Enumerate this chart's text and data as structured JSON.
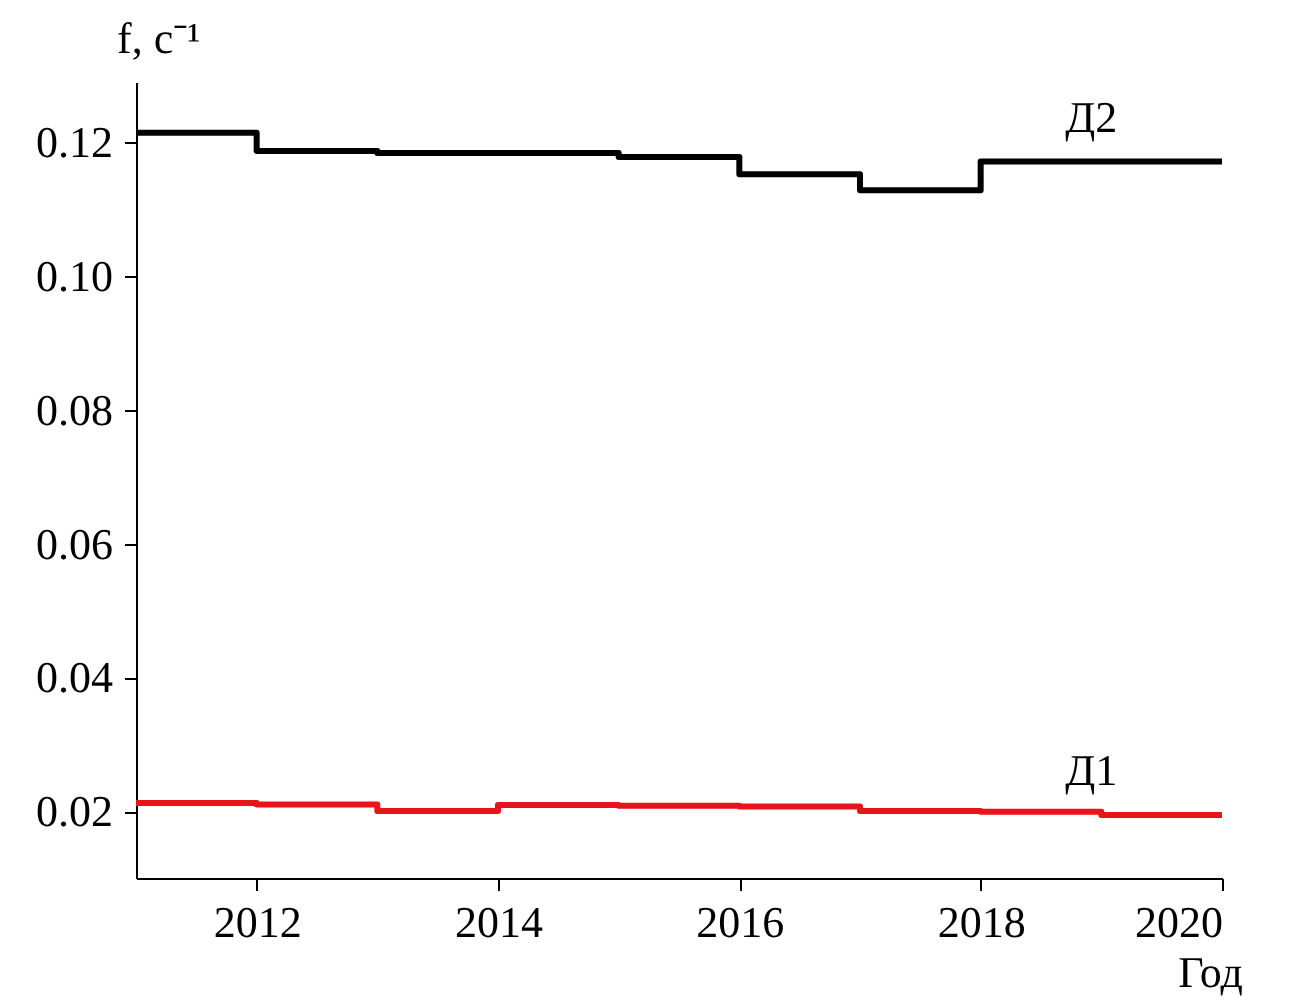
{
  "chart_data": {
    "type": "step",
    "xlabel": "Год",
    "ylabel": "f, с⁻¹",
    "x": [
      2011,
      2012,
      2013,
      2014,
      2015,
      2016,
      2017,
      2018,
      2019,
      2020
    ],
    "series": [
      {
        "name": "Д2",
        "color": "#000000",
        "values": [
          0.1214,
          0.1187,
          0.1184,
          0.1184,
          0.1178,
          0.1152,
          0.1128,
          0.1171,
          0.1171,
          0.1171
        ]
      },
      {
        "name": "Д1",
        "color": "#e8141c",
        "values": [
          0.0212,
          0.021,
          0.02,
          0.0209,
          0.0208,
          0.0207,
          0.02,
          0.0199,
          0.0194,
          0.0194
        ]
      }
    ],
    "xlim": [
      2011,
      2020
    ],
    "xticks": [
      2012,
      2014,
      2016,
      2018,
      2020
    ],
    "ylim": [
      0.01,
      0.129
    ],
    "yticks": [
      0.02,
      0.04,
      0.06,
      0.08,
      {
        "value": 0.1,
        "label": "0.10"
      },
      0.12
    ],
    "grid": false,
    "legend": false,
    "marker": "none",
    "line_style": "solid"
  }
}
